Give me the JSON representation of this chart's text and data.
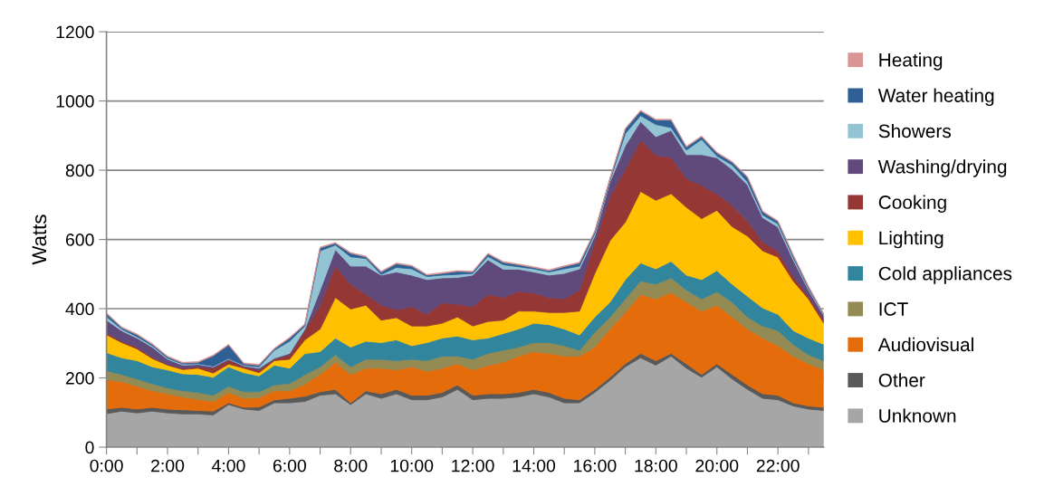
{
  "chart_data": {
    "type": "area",
    "stacked": true,
    "ylabel": "Watts",
    "x": [
      0,
      0.5,
      1,
      1.5,
      2,
      2.5,
      3,
      3.5,
      4,
      4.5,
      5,
      5.5,
      6,
      6.5,
      7,
      7.5,
      8,
      8.5,
      9,
      9.5,
      10,
      10.5,
      11,
      11.5,
      12,
      12.5,
      13,
      13.5,
      14,
      14.5,
      15,
      15.5,
      16,
      16.5,
      17,
      17.5,
      18,
      18.5,
      19,
      19.5,
      20,
      20.5,
      21,
      21.5,
      22,
      22.5,
      23,
      23.5
    ],
    "xlim": [
      0,
      23.5
    ],
    "xticks": [
      {
        "value": 0,
        "label": "0:00"
      },
      {
        "value": 1,
        "label": null
      },
      {
        "value": 2,
        "label": "2:00"
      },
      {
        "value": 3,
        "label": null
      },
      {
        "value": 4,
        "label": "4:00"
      },
      {
        "value": 5,
        "label": null
      },
      {
        "value": 6,
        "label": "6:00"
      },
      {
        "value": 7,
        "label": null
      },
      {
        "value": 8,
        "label": "8:00"
      },
      {
        "value": 9,
        "label": null
      },
      {
        "value": 10,
        "label": "10:00"
      },
      {
        "value": 11,
        "label": null
      },
      {
        "value": 12,
        "label": "12:00"
      },
      {
        "value": 13,
        "label": null
      },
      {
        "value": 14,
        "label": "14:00"
      },
      {
        "value": 15,
        "label": null
      },
      {
        "value": 16,
        "label": "16:00"
      },
      {
        "value": 17,
        "label": null
      },
      {
        "value": 18,
        "label": "18:00"
      },
      {
        "value": 19,
        "label": null
      },
      {
        "value": 20,
        "label": "20:00"
      },
      {
        "value": 21,
        "label": null
      },
      {
        "value": 22,
        "label": "22:00"
      },
      {
        "value": 23,
        "label": null
      }
    ],
    "ylim": [
      0,
      1200
    ],
    "yticks": [
      0,
      200,
      400,
      600,
      800,
      1000,
      1200
    ],
    "grid": "y",
    "legend": "right",
    "series": [
      {
        "name": "Unknown",
        "color": "#a6a6a6",
        "values": [
          97,
          104,
          99,
          104,
          99,
          96,
          96,
          93,
          123,
          110,
          106,
          128,
          128,
          132,
          150,
          154,
          123,
          154,
          141,
          154,
          137,
          137,
          145,
          167,
          137,
          141,
          141,
          145,
          154,
          145,
          128,
          128,
          158,
          193,
          232,
          258,
          237,
          263,
          228,
          202,
          232,
          197,
          167,
          141,
          137,
          119,
          110,
          106
        ]
      },
      {
        "name": "Other",
        "color": "#595959",
        "values": [
          13,
          11,
          11,
          11,
          11,
          12,
          10,
          11,
          5,
          5,
          10,
          9,
          13,
          15,
          10,
          13,
          5,
          9,
          13,
          13,
          13,
          13,
          13,
          13,
          13,
          13,
          13,
          13,
          13,
          13,
          13,
          9,
          9,
          9,
          9,
          13,
          13,
          8,
          13,
          8,
          9,
          13,
          13,
          13,
          13,
          9,
          9,
          9
        ]
      },
      {
        "name": "Audiovisual",
        "color": "#e46c0a",
        "values": [
          85,
          74,
          66,
          48,
          44,
          37,
          32,
          28,
          30,
          26,
          27,
          26,
          22,
          35,
          50,
          78,
          82,
          65,
          74,
          56,
          82,
          69,
          70,
          61,
          73,
          82,
          91,
          105,
          109,
          113,
          122,
          126,
          122,
          139,
          148,
          170,
          178,
          176,
          178,
          183,
          169,
          166,
          161,
          161,
          143,
          135,
          122,
          108
        ]
      },
      {
        "name": "ICT",
        "color": "#948a54",
        "values": [
          26,
          21,
          21,
          20,
          17,
          18,
          20,
          18,
          18,
          19,
          17,
          17,
          21,
          27,
          22,
          22,
          22,
          26,
          26,
          27,
          22,
          31,
          35,
          22,
          31,
          35,
          35,
          26,
          26,
          31,
          30,
          17,
          43,
          35,
          39,
          39,
          43,
          42,
          35,
          35,
          39,
          43,
          35,
          35,
          44,
          34,
          26,
          27
        ]
      },
      {
        "name": "Cold appliances",
        "color": "#31859c",
        "values": [
          52,
          48,
          53,
          49,
          52,
          49,
          52,
          52,
          56,
          55,
          46,
          57,
          44,
          61,
          44,
          48,
          57,
          52,
          48,
          60,
          39,
          52,
          52,
          58,
          56,
          44,
          48,
          52,
          56,
          52,
          48,
          44,
          44,
          43,
          56,
          52,
          44,
          48,
          43,
          56,
          61,
          52,
          60,
          52,
          47,
          40,
          48,
          47
        ]
      },
      {
        "name": "Lighting",
        "color": "#ffc000",
        "values": [
          52,
          44,
          34,
          24,
          14,
          12,
          18,
          12,
          8,
          13,
          9,
          13,
          26,
          40,
          65,
          117,
          110,
          104,
          65,
          64,
          57,
          48,
          43,
          55,
          40,
          48,
          39,
          52,
          35,
          35,
          48,
          69,
          126,
          178,
          166,
          207,
          198,
          195,
          196,
          176,
          174,
          166,
          174,
          165,
          165,
          143,
          113,
          61
        ]
      },
      {
        "name": "Cooking",
        "color": "#953735",
        "values": [
          5,
          4,
          5,
          4,
          2,
          4,
          4,
          14,
          12,
          4,
          8,
          4,
          13,
          27,
          69,
          91,
          72,
          31,
          43,
          23,
          56,
          34,
          59,
          37,
          56,
          78,
          65,
          57,
          52,
          43,
          39,
          61,
          91,
          126,
          152,
          148,
          130,
          105,
          83,
          96,
          48,
          61,
          44,
          26,
          18,
          13,
          9,
          9
        ]
      },
      {
        "name": "Washing/drying",
        "color": "#604a7b",
        "values": [
          37,
          30,
          26,
          29,
          15,
          9,
          7,
          4,
          2,
          3,
          5,
          3,
          4,
          4,
          44,
          48,
          52,
          82,
          87,
          109,
          91,
          100,
          72,
          77,
          91,
          100,
          82,
          64,
          61,
          65,
          74,
          61,
          17,
          44,
          69,
          54,
          54,
          78,
          69,
          89,
          104,
          104,
          104,
          70,
          69,
          48,
          17,
          13
        ]
      },
      {
        "name": "Showers",
        "color": "#93c4d4",
        "values": [
          10,
          5,
          4,
          4,
          3,
          3,
          2,
          2,
          2,
          2,
          4,
          23,
          35,
          9,
          113,
          13,
          27,
          22,
          2,
          13,
          18,
          9,
          8,
          9,
          5,
          10,
          13,
          7,
          9,
          9,
          13,
          8,
          7,
          4,
          35,
          17,
          35,
          8,
          13,
          44,
          5,
          13,
          9,
          8,
          9,
          7,
          4,
          3
        ]
      },
      {
        "name": "Water heating",
        "color": "#2e5f95",
        "values": [
          9,
          4,
          6,
          4,
          4,
          3,
          4,
          30,
          39,
          4,
          5,
          4,
          9,
          4,
          9,
          5,
          10,
          5,
          7,
          11,
          8,
          4,
          5,
          9,
          4,
          7,
          7,
          6,
          4,
          4,
          7,
          9,
          6,
          5,
          13,
          13,
          13,
          22,
          9,
          8,
          9,
          8,
          13,
          9,
          7,
          6,
          5,
          1
        ]
      },
      {
        "name": "Heating",
        "color": "#d99694",
        "values": [
          2,
          2,
          2,
          2,
          2,
          2,
          2,
          2,
          2,
          2,
          2,
          2,
          2,
          2,
          2,
          2,
          2,
          2,
          2,
          2,
          2,
          2,
          2,
          2,
          2,
          2,
          2,
          2,
          2,
          2,
          2,
          2,
          2,
          2,
          2,
          2,
          2,
          2,
          2,
          2,
          2,
          2,
          2,
          2,
          2,
          2,
          2,
          2
        ]
      }
    ]
  }
}
